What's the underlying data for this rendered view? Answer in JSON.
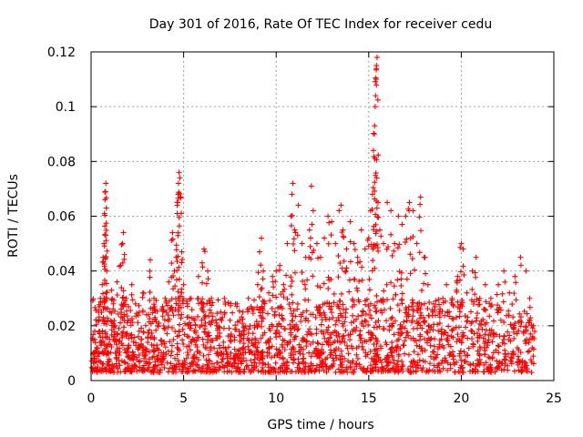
{
  "chart_data": {
    "type": "scatter",
    "title": "Day 301 of 2016, Rate Of TEC Index for receiver cedu",
    "xlabel": "GPS time / hours",
    "ylabel": "ROTI / TECUs",
    "xlim": [
      0,
      25
    ],
    "ylim": [
      0,
      0.12
    ],
    "xticks": [
      0,
      5,
      10,
      15,
      20,
      25
    ],
    "xtick_labels": [
      "0",
      "5",
      "10",
      "15",
      "20",
      "25"
    ],
    "yticks": [
      0,
      0.02,
      0.04,
      0.06,
      0.08,
      0.1,
      0.12
    ],
    "ytick_labels": [
      "0",
      "0.02",
      "0.04",
      "0.06",
      "0.08",
      "0.1",
      "0.12"
    ],
    "grid": true,
    "marker": "+",
    "color": "#ff0000",
    "series": [
      {
        "name": "ROTI",
        "points": [
          [
            0.1,
            0.008
          ],
          [
            0.2,
            0.018
          ],
          [
            0.3,
            0.012
          ],
          [
            0.4,
            0.025
          ],
          [
            0.5,
            0.03
          ],
          [
            0.6,
            0.035
          ],
          [
            0.65,
            0.045
          ],
          [
            0.7,
            0.05
          ],
          [
            0.72,
            0.061
          ],
          [
            0.75,
            0.066
          ],
          [
            0.78,
            0.069
          ],
          [
            0.8,
            0.072
          ],
          [
            0.82,
            0.063
          ],
          [
            0.85,
            0.04
          ],
          [
            0.9,
            0.022
          ],
          [
            1.0,
            0.015
          ],
          [
            1.1,
            0.033
          ],
          [
            1.2,
            0.028
          ],
          [
            1.3,
            0.02
          ],
          [
            1.4,
            0.036
          ],
          [
            1.5,
            0.019
          ],
          [
            1.6,
            0.042
          ],
          [
            1.7,
            0.05
          ],
          [
            1.75,
            0.054
          ],
          [
            1.8,
            0.046
          ],
          [
            1.9,
            0.03
          ],
          [
            2.0,
            0.022
          ],
          [
            2.2,
            0.035
          ],
          [
            2.4,
            0.028
          ],
          [
            2.6,
            0.018
          ],
          [
            2.8,
            0.032
          ],
          [
            3.0,
            0.024
          ],
          [
            3.2,
            0.044
          ],
          [
            3.4,
            0.03
          ],
          [
            3.6,
            0.02
          ],
          [
            3.8,
            0.026
          ],
          [
            4.0,
            0.03
          ],
          [
            4.2,
            0.036
          ],
          [
            4.4,
            0.054
          ],
          [
            4.5,
            0.04
          ],
          [
            4.6,
            0.045
          ],
          [
            4.65,
            0.061
          ],
          [
            4.7,
            0.068
          ],
          [
            4.72,
            0.072
          ],
          [
            4.75,
            0.076
          ],
          [
            4.8,
            0.074
          ],
          [
            4.85,
            0.067
          ],
          [
            4.9,
            0.047
          ],
          [
            5.0,
            0.035
          ],
          [
            5.2,
            0.028
          ],
          [
            5.4,
            0.03
          ],
          [
            5.6,
            0.022
          ],
          [
            5.8,
            0.038
          ],
          [
            6.0,
            0.043
          ],
          [
            6.1,
            0.048
          ],
          [
            6.3,
            0.04
          ],
          [
            6.5,
            0.03
          ],
          [
            6.8,
            0.02
          ],
          [
            7.0,
            0.025
          ],
          [
            7.2,
            0.03
          ],
          [
            7.5,
            0.022
          ],
          [
            7.8,
            0.028
          ],
          [
            8.0,
            0.018
          ],
          [
            8.2,
            0.025
          ],
          [
            8.5,
            0.03
          ],
          [
            8.8,
            0.026
          ],
          [
            9.0,
            0.035
          ],
          [
            9.1,
            0.047
          ],
          [
            9.2,
            0.052
          ],
          [
            9.3,
            0.04
          ],
          [
            9.6,
            0.032
          ],
          [
            9.8,
            0.038
          ],
          [
            10.0,
            0.04
          ],
          [
            10.2,
            0.042
          ],
          [
            10.4,
            0.035
          ],
          [
            10.6,
            0.05
          ],
          [
            10.8,
            0.06
          ],
          [
            10.85,
            0.068
          ],
          [
            10.9,
            0.072
          ],
          [
            11.0,
            0.055
          ],
          [
            11.2,
            0.064
          ],
          [
            11.4,
            0.05
          ],
          [
            11.6,
            0.045
          ],
          [
            11.8,
            0.055
          ],
          [
            11.9,
            0.071
          ],
          [
            12.0,
            0.062
          ],
          [
            12.2,
            0.05
          ],
          [
            12.4,
            0.045
          ],
          [
            12.6,
            0.052
          ],
          [
            12.8,
            0.06
          ],
          [
            13.0,
            0.058
          ],
          [
            13.2,
            0.05
          ],
          [
            13.4,
            0.062
          ],
          [
            13.5,
            0.064
          ],
          [
            13.6,
            0.055
          ],
          [
            13.8,
            0.048
          ],
          [
            14.0,
            0.058
          ],
          [
            14.2,
            0.05
          ],
          [
            14.4,
            0.045
          ],
          [
            14.6,
            0.055
          ],
          [
            14.8,
            0.048
          ],
          [
            15.0,
            0.052
          ],
          [
            15.1,
            0.062
          ],
          [
            15.2,
            0.068
          ],
          [
            15.25,
            0.084
          ],
          [
            15.3,
            0.09
          ],
          [
            15.32,
            0.093
          ],
          [
            15.35,
            0.1
          ],
          [
            15.37,
            0.104
          ],
          [
            15.4,
            0.11
          ],
          [
            15.42,
            0.115
          ],
          [
            15.45,
            0.118
          ],
          [
            15.5,
            0.065
          ],
          [
            15.6,
            0.055
          ],
          [
            15.8,
            0.05
          ],
          [
            16.0,
            0.065
          ],
          [
            16.2,
            0.062
          ],
          [
            16.4,
            0.05
          ],
          [
            16.6,
            0.06
          ],
          [
            16.8,
            0.057
          ],
          [
            17.0,
            0.06
          ],
          [
            17.2,
            0.065
          ],
          [
            17.4,
            0.062
          ],
          [
            17.6,
            0.05
          ],
          [
            17.8,
            0.067
          ],
          [
            18.0,
            0.045
          ],
          [
            18.2,
            0.035
          ],
          [
            18.5,
            0.028
          ],
          [
            18.8,
            0.025
          ],
          [
            19.0,
            0.03
          ],
          [
            19.2,
            0.035
          ],
          [
            19.5,
            0.03
          ],
          [
            19.8,
            0.038
          ],
          [
            20.0,
            0.05
          ],
          [
            20.1,
            0.048
          ],
          [
            20.3,
            0.032
          ],
          [
            20.6,
            0.04
          ],
          [
            20.8,
            0.045
          ],
          [
            21.0,
            0.03
          ],
          [
            21.3,
            0.035
          ],
          [
            21.6,
            0.03
          ],
          [
            22.0,
            0.035
          ],
          [
            22.3,
            0.04
          ],
          [
            22.6,
            0.032
          ],
          [
            22.9,
            0.038
          ],
          [
            23.2,
            0.045
          ],
          [
            23.5,
            0.04
          ],
          [
            23.7,
            0.03
          ],
          [
            23.9,
            0.02
          ]
        ],
        "baseline_band": [
          0.003,
          0.03
        ]
      }
    ]
  }
}
